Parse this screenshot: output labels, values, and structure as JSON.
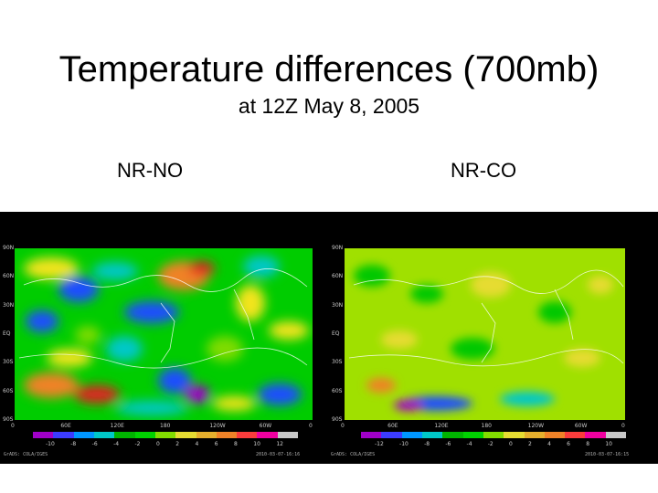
{
  "title": "Temperature differences (700mb)",
  "subtitle": "at 12Z May 8, 2005",
  "panels": [
    {
      "label": "NR-NO",
      "lat_ticks": [
        "90N",
        "60N",
        "30N",
        "EQ",
        "30S",
        "60S",
        "90S"
      ],
      "lon_ticks": [
        "0",
        "60E",
        "120E",
        "180",
        "120W",
        "60W",
        "0"
      ],
      "colorbar_labels": [
        "-10",
        "-8",
        "-6",
        "-4",
        "-2",
        "0",
        "2",
        "4",
        "6",
        "8",
        "10",
        "12"
      ],
      "footer_left": "GrADS: COLA/IGES",
      "footer_right": "2010-03-07-16:16"
    },
    {
      "label": "NR-CO",
      "lat_ticks": [
        "90N",
        "60N",
        "30N",
        "EQ",
        "30S",
        "60S",
        "90S"
      ],
      "lon_ticks": [
        "0",
        "60E",
        "120E",
        "180",
        "120W",
        "60W",
        "0"
      ],
      "colorbar_labels": [
        "-12",
        "-10",
        "-8",
        "-6",
        "-4",
        "-2",
        "0",
        "2",
        "4",
        "6",
        "8",
        "10"
      ],
      "footer_left": "GrADS: COLA/IGES",
      "footer_right": "2010-03-07-16:15"
    }
  ],
  "colorbar_colors": [
    "#a000c8",
    "#3c3cff",
    "#0096ff",
    "#00c8c8",
    "#00b400",
    "#00d200",
    "#82dc00",
    "#e6dc32",
    "#e6af2d",
    "#f08228",
    "#fa3c3c",
    "#f000a0",
    "#c8c8c8"
  ]
}
